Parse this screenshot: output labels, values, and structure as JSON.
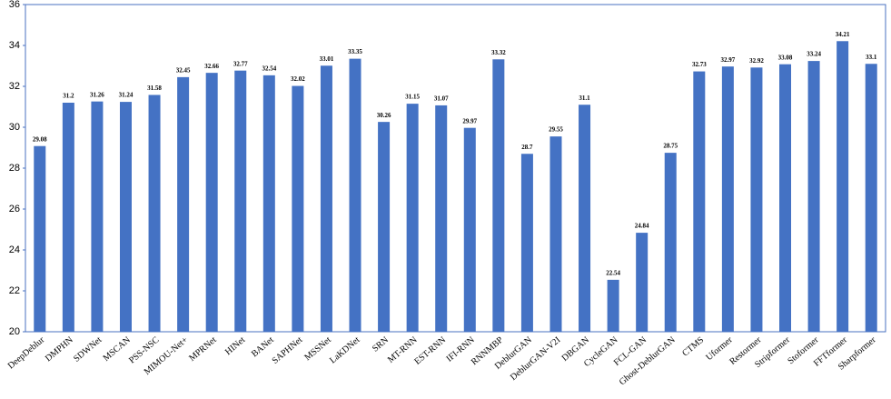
{
  "chart_data": {
    "type": "bar",
    "categories": [
      "DeepDeblur",
      "DMPHN",
      "SDWNet",
      "MSCAN",
      "PSS-NSC",
      "MIMOU-Net+",
      "MPRNet",
      "HINet",
      "BANet",
      "SAPHNet",
      "MSSNet",
      "LaKDNet",
      "SRN",
      "MT-RNN",
      "EST-RNN",
      "IFI-RNN",
      "RNNMBP",
      "DeblurGAN",
      "DeblurGAN-V2I",
      "DBGAN",
      "CycleGAN",
      "FCL-GAN",
      "Ghost-DeblurGAN",
      "CTMS",
      "Uformer",
      "Restormer",
      "Stripformer",
      "Stoformer",
      "FFTformer",
      "Sharpformer"
    ],
    "values": [
      29.08,
      31.2,
      31.26,
      31.24,
      31.58,
      32.45,
      32.66,
      32.77,
      32.54,
      32.02,
      33.01,
      33.35,
      30.26,
      31.15,
      31.07,
      29.97,
      33.32,
      28.7,
      29.55,
      31.1,
      22.54,
      24.84,
      28.75,
      32.73,
      32.97,
      32.92,
      33.08,
      33.24,
      34.21,
      33.1
    ],
    "color": "#4472c4",
    "ylim": [
      20,
      36
    ],
    "yticks": [
      20,
      22,
      24,
      26,
      28,
      30,
      32,
      34,
      36
    ],
    "grid": false
  }
}
